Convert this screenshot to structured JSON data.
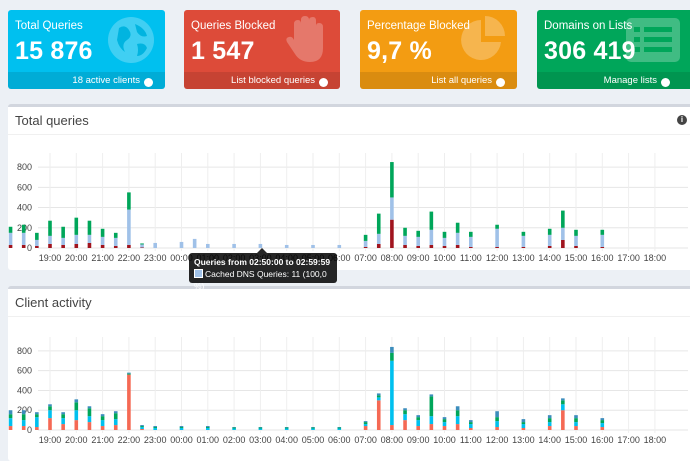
{
  "cards": [
    {
      "title": "Total Queries",
      "value": "15 876",
      "footer": "18 active clients",
      "color": "#00c0ef",
      "icon": "globe-icon"
    },
    {
      "title": "Queries Blocked",
      "value": "1 547",
      "footer": "List blocked queries",
      "color": "#dd4b39",
      "icon": "hand-icon"
    },
    {
      "title": "Percentage Blocked",
      "value": "9,7 %",
      "footer": "List all queries",
      "color": "#f39c12",
      "icon": "pie-chart-icon"
    },
    {
      "title": "Domains on Lists",
      "value": "306 419",
      "footer": "Manage lists",
      "color": "#00a65a",
      "icon": "list-icon"
    }
  ],
  "total_queries": {
    "title": "Total queries"
  },
  "client_activity": {
    "title": "Client activity"
  },
  "tooltip": {
    "title": "Queries from 02:50:00 to 02:59:59",
    "line": "Cached DNS Queries: 11 (100,0 %)"
  },
  "chart_data": [
    {
      "type": "bar",
      "title": "Total queries",
      "x_tick_labels": [
        "19:00",
        "20:00",
        "21:00",
        "22:00",
        "23:00",
        "00:00",
        "01:00",
        "02:00",
        "03:00",
        "04:00",
        "05:00",
        "06:00",
        "07:00",
        "08:00",
        "09:00",
        "10:00",
        "11:00",
        "12:00",
        "13:00",
        "14:00",
        "15:00",
        "16:00",
        "17:00",
        "18:00"
      ],
      "ylim": [
        0,
        900
      ],
      "y_ticks": [
        0,
        200,
        400,
        600,
        800
      ],
      "stacked": true,
      "grid": true,
      "series_colors": {
        "blocked": "#a0141e",
        "other": "#00a65a",
        "cached": "#a0c1e8"
      },
      "bars": [
        {
          "hour": "18:30",
          "blocked": 20,
          "other": 70,
          "cached": 60
        },
        {
          "hour": "19:00",
          "blocked": 40,
          "other": 150,
          "cached": 80
        },
        {
          "hour": "19:30",
          "blocked": 30,
          "other": 110,
          "cached": 70
        },
        {
          "hour": "20:00",
          "blocked": 40,
          "other": 170,
          "cached": 90
        },
        {
          "hour": "20:30",
          "blocked": 50,
          "other": 140,
          "cached": 80
        },
        {
          "hour": "21:00",
          "blocked": 30,
          "other": 80,
          "cached": 80
        },
        {
          "hour": "21:30",
          "blocked": 20,
          "other": 50,
          "cached": 80
        },
        {
          "hour": "22:00",
          "blocked": 30,
          "other": 170,
          "cached": 350
        },
        {
          "hour": "22:30",
          "blocked": 5,
          "other": 10,
          "cached": 30
        },
        {
          "hour": "23:00",
          "blocked": 0,
          "other": 0,
          "cached": 50
        },
        {
          "hour": "00:00",
          "blocked": 0,
          "other": 0,
          "cached": 60
        },
        {
          "hour": "00:30",
          "blocked": 0,
          "other": 0,
          "cached": 90
        },
        {
          "hour": "01:00",
          "blocked": 0,
          "other": 0,
          "cached": 40
        },
        {
          "hour": "02:00",
          "blocked": 0,
          "other": 0,
          "cached": 40
        },
        {
          "hour": "03:00",
          "blocked": 0,
          "other": 0,
          "cached": 40
        },
        {
          "hour": "04:00",
          "blocked": 0,
          "other": 0,
          "cached": 30
        },
        {
          "hour": "05:00",
          "blocked": 0,
          "other": 0,
          "cached": 30
        },
        {
          "hour": "06:00",
          "blocked": 0,
          "other": 0,
          "cached": 30
        },
        {
          "hour": "07:00",
          "blocked": 10,
          "other": 60,
          "cached": 60
        },
        {
          "hour": "07:30",
          "blocked": 40,
          "other": 200,
          "cached": 100
        },
        {
          "hour": "08:00",
          "blocked": 280,
          "other": 350,
          "cached": 220
        },
        {
          "hour": "08:30",
          "blocked": 30,
          "other": 80,
          "cached": 90
        },
        {
          "hour": "09:00",
          "blocked": 20,
          "other": 60,
          "cached": 90
        },
        {
          "hour": "09:30",
          "blocked": 30,
          "other": 180,
          "cached": 150
        },
        {
          "hour": "10:00",
          "blocked": 20,
          "other": 60,
          "cached": 80
        },
        {
          "hour": "10:30",
          "blocked": 30,
          "other": 100,
          "cached": 120
        },
        {
          "hour": "11:00",
          "blocked": 10,
          "other": 50,
          "cached": 100
        },
        {
          "hour": "12:00",
          "blocked": 10,
          "other": 40,
          "cached": 180
        },
        {
          "hour": "13:00",
          "blocked": 10,
          "other": 40,
          "cached": 110
        },
        {
          "hour": "14:00",
          "blocked": 20,
          "other": 60,
          "cached": 110
        },
        {
          "hour": "14:30",
          "blocked": 80,
          "other": 170,
          "cached": 120
        },
        {
          "hour": "15:00",
          "blocked": 20,
          "other": 60,
          "cached": 100
        },
        {
          "hour": "16:00",
          "blocked": 10,
          "other": 50,
          "cached": 120
        },
        {
          "hour": "17:00",
          "blocked": 40,
          "other": 250,
          "cached": 100
        },
        {
          "hour": "17:30",
          "blocked": 30,
          "other": 60,
          "cached": 120
        },
        {
          "hour": "18:00",
          "blocked": 30,
          "other": 80,
          "cached": 120
        }
      ]
    },
    {
      "type": "bar",
      "title": "Client activity",
      "x_tick_labels": [
        "19:00",
        "20:00",
        "21:00",
        "22:00",
        "23:00",
        "00:00",
        "01:00",
        "02:00",
        "03:00",
        "04:00",
        "05:00",
        "06:00",
        "07:00",
        "08:00",
        "09:00",
        "10:00",
        "11:00",
        "12:00",
        "13:00",
        "14:00",
        "15:00",
        "16:00",
        "17:00",
        "18:00"
      ],
      "ylim": [
        0,
        900
      ],
      "y_ticks": [
        0,
        200,
        400,
        600,
        800
      ],
      "stacked": true,
      "grid": true,
      "series_colors": {
        "client_a": "#f56954",
        "client_b": "#00c0ef",
        "client_c": "#00a65a",
        "client_d": "#3c8dbc"
      },
      "bars": [
        {
          "hour": "18:30",
          "client_a": 30,
          "client_b": 100,
          "client_c": 30,
          "client_d": 20
        },
        {
          "hour": "19:00",
          "client_a": 120,
          "client_b": 80,
          "client_c": 40,
          "client_d": 20
        },
        {
          "hour": "19:30",
          "client_a": 60,
          "client_b": 60,
          "client_c": 40,
          "client_d": 20
        },
        {
          "hour": "20:00",
          "client_a": 100,
          "client_b": 100,
          "client_c": 80,
          "client_d": 30
        },
        {
          "hour": "20:30",
          "client_a": 80,
          "client_b": 60,
          "client_c": 80,
          "client_d": 20
        },
        {
          "hour": "21:00",
          "client_a": 40,
          "client_b": 60,
          "client_c": 40,
          "client_d": 20
        },
        {
          "hour": "21:30",
          "client_a": 50,
          "client_b": 60,
          "client_c": 60,
          "client_d": 20
        },
        {
          "hour": "22:00",
          "client_a": 560,
          "client_b": 0,
          "client_c": 10,
          "client_d": 10
        },
        {
          "hour": "22:30",
          "client_a": 10,
          "client_b": 20,
          "client_c": 10,
          "client_d": 10
        },
        {
          "hour": "23:00",
          "client_a": 0,
          "client_b": 20,
          "client_c": 10,
          "client_d": 10
        },
        {
          "hour": "00:00",
          "client_a": 0,
          "client_b": 20,
          "client_c": 10,
          "client_d": 10
        },
        {
          "hour": "01:00",
          "client_a": 0,
          "client_b": 20,
          "client_c": 10,
          "client_d": 10
        },
        {
          "hour": "02:00",
          "client_a": 0,
          "client_b": 15,
          "client_c": 10,
          "client_d": 5
        },
        {
          "hour": "03:00",
          "client_a": 0,
          "client_b": 15,
          "client_c": 10,
          "client_d": 5
        },
        {
          "hour": "04:00",
          "client_a": 0,
          "client_b": 15,
          "client_c": 10,
          "client_d": 5
        },
        {
          "hour": "05:00",
          "client_a": 0,
          "client_b": 15,
          "client_c": 10,
          "client_d": 5
        },
        {
          "hour": "06:00",
          "client_a": 0,
          "client_b": 15,
          "client_c": 10,
          "client_d": 5
        },
        {
          "hour": "07:00",
          "client_a": 40,
          "client_b": 20,
          "client_c": 20,
          "client_d": 10
        },
        {
          "hour": "07:30",
          "client_a": 300,
          "client_b": 30,
          "client_c": 20,
          "client_d": 20
        },
        {
          "hour": "08:00",
          "client_a": 50,
          "client_b": 650,
          "client_c": 80,
          "client_d": 60
        },
        {
          "hour": "08:30",
          "client_a": 100,
          "client_b": 60,
          "client_c": 40,
          "client_d": 20
        },
        {
          "hour": "09:00",
          "client_a": 40,
          "client_b": 60,
          "client_c": 30,
          "client_d": 20
        },
        {
          "hour": "09:30",
          "client_a": 60,
          "client_b": 80,
          "client_c": 200,
          "client_d": 20
        },
        {
          "hour": "10:00",
          "client_a": 40,
          "client_b": 40,
          "client_c": 30,
          "client_d": 20
        },
        {
          "hour": "10:30",
          "client_a": 60,
          "client_b": 80,
          "client_c": 60,
          "client_d": 40
        },
        {
          "hour": "11:00",
          "client_a": 20,
          "client_b": 40,
          "client_c": 20,
          "client_d": 20
        },
        {
          "hour": "12:00",
          "client_a": 30,
          "client_b": 60,
          "client_c": 40,
          "client_d": 60
        },
        {
          "hour": "13:00",
          "client_a": 20,
          "client_b": 40,
          "client_c": 20,
          "client_d": 30
        },
        {
          "hour": "14:00",
          "client_a": 40,
          "client_b": 40,
          "client_c": 40,
          "client_d": 30
        },
        {
          "hour": "14:30",
          "client_a": 200,
          "client_b": 60,
          "client_c": 40,
          "client_d": 20
        },
        {
          "hour": "15:00",
          "client_a": 40,
          "client_b": 40,
          "client_c": 40,
          "client_d": 30
        },
        {
          "hour": "16:00",
          "client_a": 30,
          "client_b": 40,
          "client_c": 30,
          "client_d": 20
        },
        {
          "hour": "17:00",
          "client_a": 40,
          "client_b": 250,
          "client_c": 40,
          "client_d": 30
        },
        {
          "hour": "17:30",
          "client_a": 40,
          "client_b": 80,
          "client_c": 40,
          "client_d": 40
        },
        {
          "hour": "18:00",
          "client_a": 40,
          "client_b": 60,
          "client_c": 60,
          "client_d": 40
        }
      ]
    }
  ]
}
